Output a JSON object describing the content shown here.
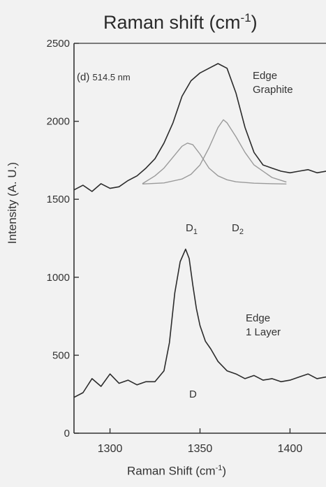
{
  "chart_data": {
    "type": "line",
    "title": "Raman shift (cm⁻¹)",
    "title_text": "Raman shift (cm",
    "title_sup": "-1",
    "title_close": ")",
    "xlabel_text": "Raman Shift (cm",
    "xlabel_sup": "-1",
    "xlabel_close": ")",
    "ylabel": "Intensity (A. U.)",
    "xlim": [
      1280,
      1420
    ],
    "ylim": [
      0,
      2500
    ],
    "x_ticks": [
      1300,
      1350,
      1400
    ],
    "y_ticks": [
      0,
      500,
      1000,
      1500,
      2000,
      2500
    ],
    "grid": false,
    "panel_label": "(d)",
    "wavelength": "514.5 nm",
    "annotations": {
      "graphite_line1": "Edge",
      "graphite_line2": "Graphite",
      "layer_line1": "Edge",
      "layer_line2": "1 Layer",
      "d1": "D",
      "d1_sub": "1",
      "d2": "D",
      "d2_sub": "2",
      "d": "D"
    },
    "series": [
      {
        "x": [
          1280,
          1285,
          1290,
          1295,
          1300,
          1305,
          1310,
          1315,
          1320,
          1325,
          1330,
          1335,
          1340,
          1345,
          1350,
          1355,
          1360,
          1365,
          1370,
          1375,
          1380,
          1385,
          1390,
          1395,
          1400,
          1405,
          1410,
          1415,
          1420
        ],
        "y": [
          1560,
          1590,
          1550,
          1600,
          1570,
          1580,
          1620,
          1650,
          1700,
          1760,
          1860,
          1990,
          2160,
          2260,
          2310,
          2340,
          2370,
          2340,
          2180,
          1960,
          1800,
          1720,
          1700,
          1680,
          1670,
          1680,
          1690,
          1670,
          1680
        ]
      },
      {
        "x": [
          1318,
          1325,
          1330,
          1335,
          1340,
          1343,
          1346,
          1350,
          1355,
          1360,
          1365,
          1370,
          1380,
          1390,
          1398
        ],
        "y": [
          1600,
          1650,
          1700,
          1770,
          1840,
          1860,
          1850,
          1790,
          1700,
          1650,
          1625,
          1612,
          1603,
          1600,
          1598
        ]
      },
      {
        "x": [
          1318,
          1330,
          1340,
          1345,
          1350,
          1355,
          1360,
          1363,
          1365,
          1370,
          1375,
          1380,
          1390,
          1398
        ],
        "y": [
          1598,
          1605,
          1630,
          1660,
          1720,
          1830,
          1960,
          2010,
          1990,
          1900,
          1800,
          1720,
          1640,
          1610
        ]
      },
      {
        "x": [
          1280,
          1285,
          1290,
          1295,
          1300,
          1305,
          1310,
          1315,
          1320,
          1325,
          1330,
          1333,
          1336,
          1339,
          1342,
          1344,
          1346,
          1348,
          1350,
          1353,
          1356,
          1360,
          1365,
          1370,
          1375,
          1380,
          1385,
          1390,
          1395,
          1400,
          1405,
          1410,
          1415,
          1420
        ],
        "y": [
          230,
          260,
          350,
          300,
          380,
          320,
          340,
          310,
          330,
          330,
          400,
          580,
          900,
          1100,
          1180,
          1120,
          950,
          800,
          690,
          590,
          540,
          460,
          400,
          380,
          350,
          370,
          340,
          350,
          330,
          340,
          360,
          380,
          350,
          360
        ]
      }
    ]
  }
}
